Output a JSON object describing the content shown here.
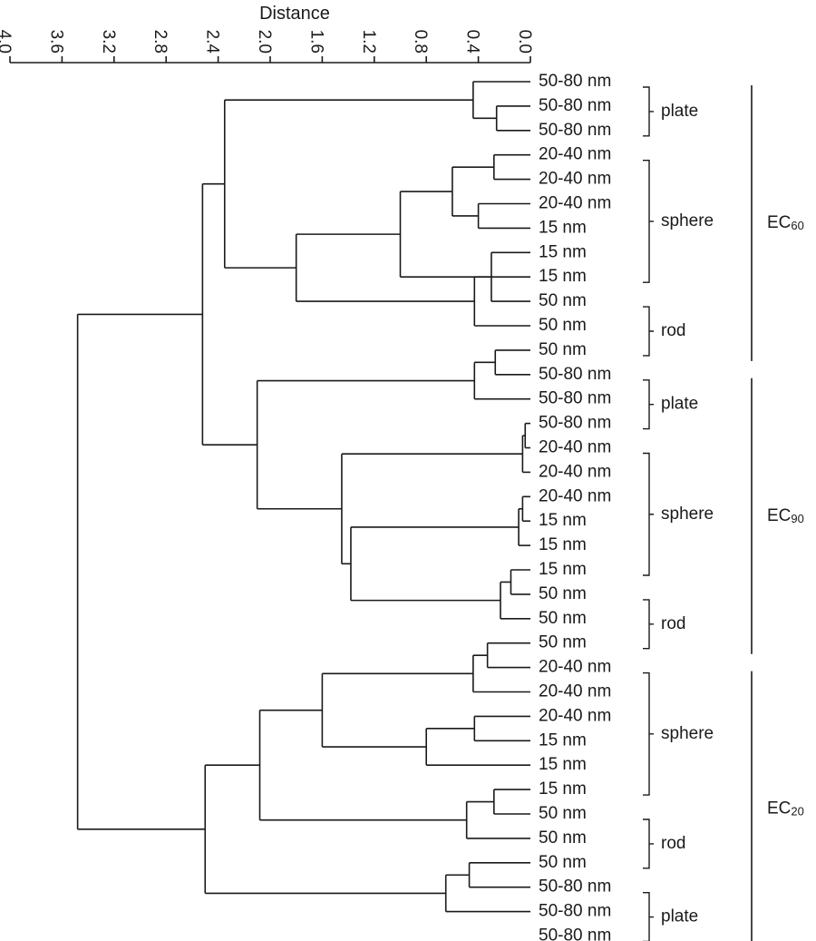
{
  "axis": {
    "title": "Distance",
    "ticks": [
      {
        "label": "4.0",
        "value": 4.0
      },
      {
        "label": "3.6",
        "value": 3.6
      },
      {
        "label": "3.2",
        "value": 3.2
      },
      {
        "label": "2.8",
        "value": 2.8
      },
      {
        "label": "2.4",
        "value": 2.4
      },
      {
        "label": "2.0",
        "value": 2.0
      },
      {
        "label": "1.6",
        "value": 1.6
      },
      {
        "label": "1.2",
        "value": 1.2
      },
      {
        "label": "0.8",
        "value": 0.8
      },
      {
        "label": "0.4",
        "value": 0.4
      },
      {
        "label": "0.0",
        "value": 0.0
      }
    ]
  },
  "leaves": [
    "50-80 nm",
    "50-80 nm",
    "50-80 nm",
    "20-40 nm",
    "20-40 nm",
    "20-40 nm",
    "15 nm",
    "15 nm",
    "15 nm",
    "50 nm",
    "50 nm",
    "50 nm",
    "50-80 nm",
    "50-80 nm",
    "50-80 nm",
    "20-40 nm",
    "20-40 nm",
    "20-40 nm",
    "15 nm",
    "15 nm",
    "15 nm",
    "50 nm",
    "50 nm",
    "50 nm",
    "20-40 nm",
    "20-40 nm",
    "20-40 nm",
    "15 nm",
    "15 nm",
    "15 nm",
    "50 nm",
    "50 nm",
    "50 nm",
    "50-80 nm",
    "50-80 nm",
    "50-80 nm"
  ],
  "shapes": [
    {
      "label": "plate",
      "first_leaf": 0,
      "last_leaf": 2
    },
    {
      "label": "sphere",
      "first_leaf": 3,
      "last_leaf": 8
    },
    {
      "label": "rod",
      "first_leaf": 9,
      "last_leaf": 11
    },
    {
      "label": "plate",
      "first_leaf": 12,
      "last_leaf": 14
    },
    {
      "label": "sphere",
      "first_leaf": 15,
      "last_leaf": 20
    },
    {
      "label": "rod",
      "first_leaf": 21,
      "last_leaf": 23
    },
    {
      "label": "sphere",
      "first_leaf": 24,
      "last_leaf": 29
    },
    {
      "label": "rod",
      "first_leaf": 30,
      "last_leaf": 32
    },
    {
      "label": "plate",
      "first_leaf": 33,
      "last_leaf": 35
    }
  ],
  "groups": [
    {
      "label": "EC",
      "sub": "60",
      "first_leaf": 0,
      "last_leaf": 11
    },
    {
      "label": "EC",
      "sub": "90",
      "first_leaf": 12,
      "last_leaf": 23
    },
    {
      "label": "EC",
      "sub": "20",
      "first_leaf": 24,
      "last_leaf": 35
    }
  ],
  "tree": {
    "h": 3.48,
    "c": [
      {
        "h": 2.52,
        "c": [
          {
            "h": 2.35,
            "c": [
              {
                "h": 0.44,
                "c": [
                  0,
                  {
                    "h": 0.26,
                    "c": [
                      1,
                      2
                    ]
                  }
                ]
              },
              {
                "h": 1.8,
                "c": [
                  {
                    "h": 1.0,
                    "c": [
                      {
                        "h": 0.6,
                        "c": [
                          {
                            "h": 0.28,
                            "c": [
                              3,
                              4
                            ]
                          },
                          {
                            "h": 0.4,
                            "c": [
                              6,
                              5
                            ]
                          }
                        ]
                      },
                      8
                    ]
                  },
                  {
                    "h": 0.43,
                    "c": [
                      {
                        "h": 0.3,
                        "c": [
                          7,
                          9
                        ]
                      },
                      10
                    ]
                  }
                ]
              }
            ]
          },
          {
            "h": 2.1,
            "c": [
              {
                "h": 0.43,
                "c": [
                  {
                    "h": 0.27,
                    "c": [
                      11,
                      12
                    ]
                  },
                  13
                ]
              },
              {
                "h": 1.45,
                "c": [
                  {
                    "h": 0.06,
                    "c": [
                      {
                        "h": 0.04,
                        "c": [
                          14,
                          15
                        ]
                      },
                      16
                    ]
                  },
                  {
                    "h": 1.38,
                    "c": [
                      {
                        "h": 0.09,
                        "c": [
                          {
                            "h": 0.06,
                            "c": [
                              17,
                              18
                            ]
                          },
                          19
                        ]
                      },
                      {
                        "h": 0.23,
                        "c": [
                          {
                            "h": 0.15,
                            "c": [
                              20,
                              21
                            ]
                          },
                          22
                        ]
                      }
                    ]
                  }
                ]
              }
            ]
          }
        ]
      },
      {
        "h": 2.5,
        "c": [
          {
            "h": 2.08,
            "c": [
              {
                "h": 1.6,
                "c": [
                  {
                    "h": 0.44,
                    "c": [
                      {
                        "h": 0.33,
                        "c": [
                          23,
                          24
                        ]
                      },
                      25
                    ]
                  },
                  {
                    "h": 0.8,
                    "c": [
                      {
                        "h": 0.43,
                        "c": [
                          26,
                          27
                        ]
                      },
                      28
                    ]
                  }
                ]
              },
              {
                "h": 0.49,
                "c": [
                  {
                    "h": 0.28,
                    "c": [
                      29,
                      30
                    ]
                  },
                  31
                ]
              }
            ]
          },
          {
            "h": 0.65,
            "c": [
              {
                "h": 0.47,
                "c": [
                  32,
                  33
                ]
              },
              34
            ]
          }
        ]
      }
    ]
  }
}
